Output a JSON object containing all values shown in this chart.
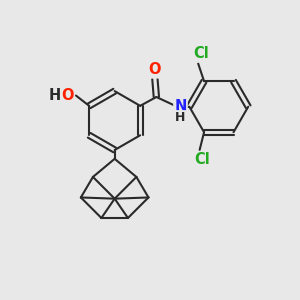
{
  "bg_color": "#e8e8e8",
  "bond_color": "#2a2a2a",
  "bond_width": 1.5,
  "atom_colors": {
    "O": "#ff2200",
    "N": "#2222ff",
    "Cl": "#22aa22",
    "C": "#2a2a2a",
    "H": "#2a2a2a"
  },
  "font_size": 10.5
}
